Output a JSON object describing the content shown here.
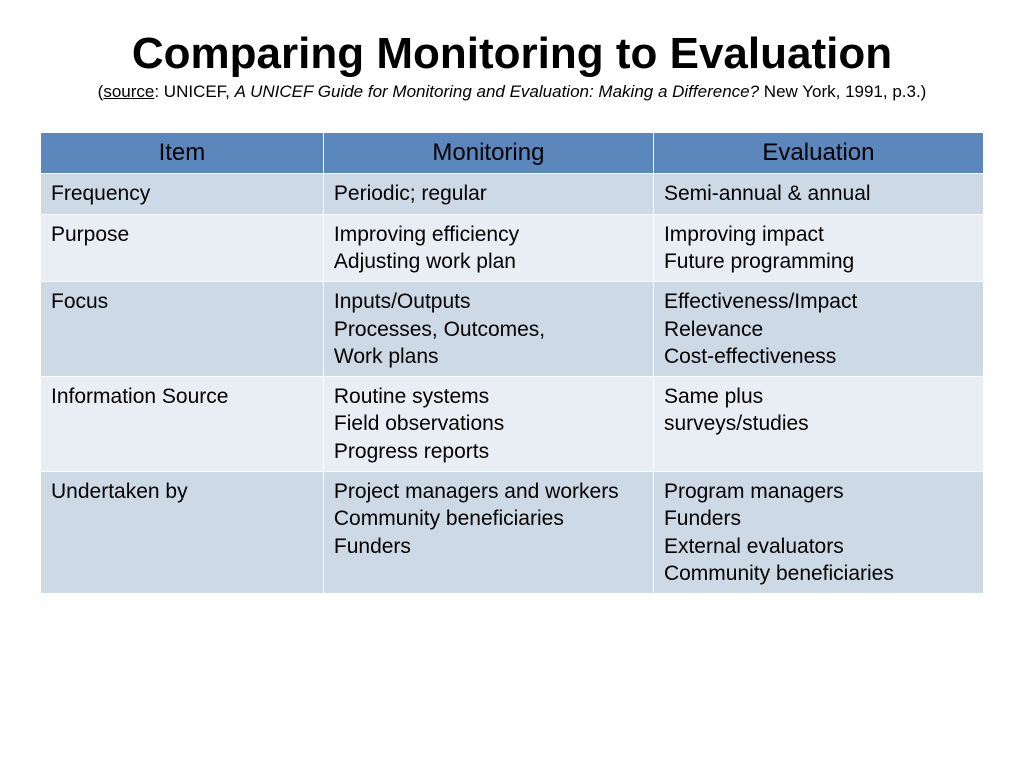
{
  "title": "Comparing Monitoring to Evaluation",
  "subtitle": {
    "source_label": "source",
    "org": ": UNICEF, ",
    "italic": "A UNICEF Guide for Monitoring and Evaluation: Making a Difference?",
    "tail": " New York, 1991, p.3.)"
  },
  "table": {
    "header_bg": "#5b87bd",
    "row_odd_bg": "#ced9e6",
    "row_even_bg": "#e9edf4",
    "border_color": "#ffffff",
    "font_family": "Comic Sans MS",
    "header_fontsize": 24,
    "body_fontsize": 21,
    "columns": [
      "Item",
      "Monitoring",
      "Evaluation"
    ],
    "col_widths": [
      "30%",
      "35%",
      "35%"
    ],
    "rows": [
      [
        "Frequency",
        "Periodic; regular",
        "Semi-annual & annual"
      ],
      [
        "Purpose",
        "Improving efficiency\nAdjusting work plan",
        "Improving impact\nFuture programming"
      ],
      [
        "Focus",
        "Inputs/Outputs\nProcesses, Outcomes,\nWork plans",
        "Effectiveness/Impact\nRelevance\nCost-effectiveness"
      ],
      [
        "Information Source",
        "Routine systems\nField observations\nProgress reports",
        "Same plus\nsurveys/studies"
      ],
      [
        "Undertaken by",
        "Project managers and workers\nCommunity beneficiaries\nFunders",
        "Program managers\nFunders\nExternal evaluators\nCommunity beneficiaries"
      ]
    ]
  }
}
